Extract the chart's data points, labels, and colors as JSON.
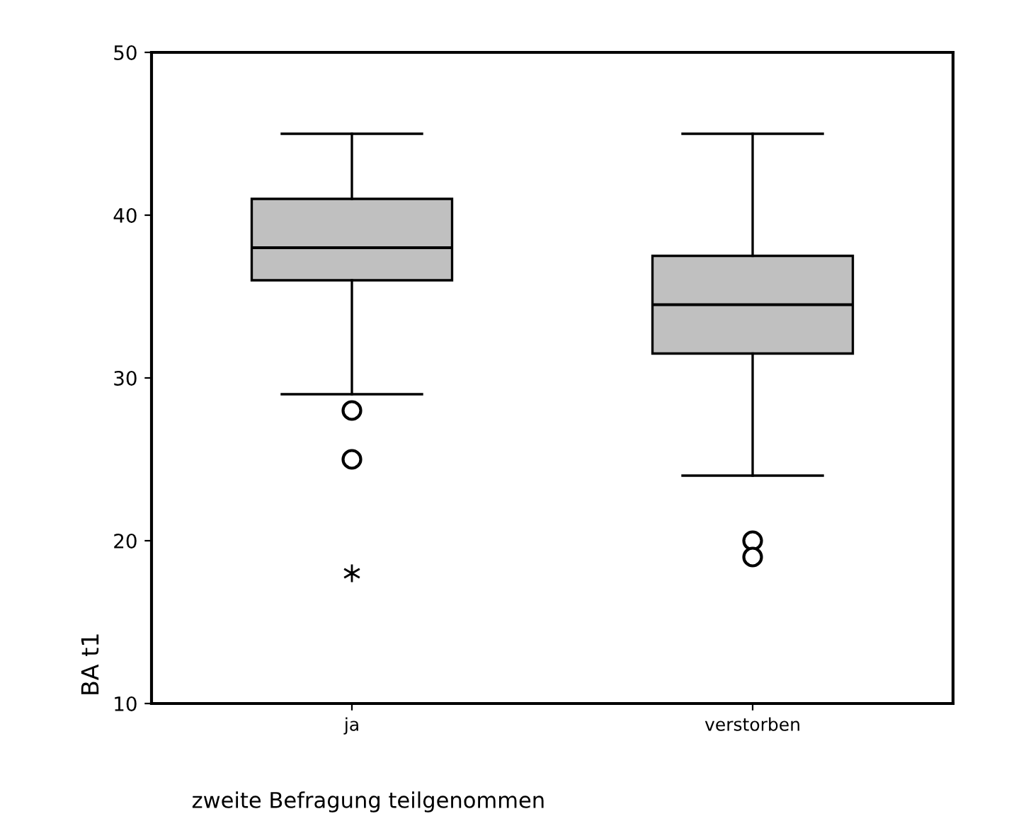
{
  "chart_data": {
    "type": "box",
    "xlabel": "zweite Befragung teilgenommen",
    "ylabel": "BA t1",
    "categories": [
      "ja",
      "verstorben"
    ],
    "series": [
      {
        "color": "#c0c0c0",
        "boxes": [
          {
            "low": 29,
            "q1": 36,
            "median": 38,
            "q3": 41,
            "high": 45,
            "outliers": [
              28,
              25,
              18
            ]
          },
          {
            "low": 24,
            "q1": 31.5,
            "median": 34.5,
            "q3": 37.5,
            "high": 45,
            "outliers": [
              20,
              19
            ]
          }
        ]
      }
    ],
    "ylim": [
      10,
      50
    ],
    "yticks": [
      10,
      20,
      30,
      40,
      50
    ],
    "grid": false,
    "legend": false
  }
}
